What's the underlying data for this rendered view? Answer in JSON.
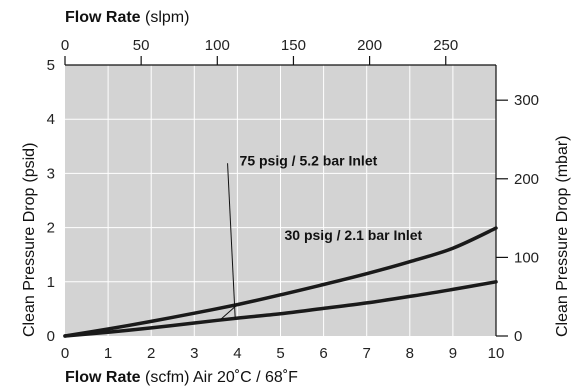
{
  "chart_data": {
    "type": "line",
    "x_bottom": {
      "title_bold": "Flow Rate",
      "title_rest": " (scfm) Air 20˚C / 68˚F",
      "range": [
        0,
        10
      ],
      "ticks": [
        "0",
        "1",
        "2",
        "3",
        "4",
        "5",
        "6",
        "7",
        "8",
        "9",
        "10"
      ]
    },
    "x_top": {
      "title_bold": "Flow Rate",
      "title_rest": " (slpm)",
      "range_max_slpm": 283,
      "ticks": [
        "0",
        "50",
        "100",
        "150",
        "200",
        "250"
      ],
      "tick_values": [
        0,
        50,
        100,
        150,
        200,
        250
      ]
    },
    "y_left": {
      "title": "Clean Pressure Drop",
      "title_unit": "(psid)",
      "range": [
        0,
        5
      ],
      "ticks": [
        "0",
        "1",
        "2",
        "3",
        "4",
        "5"
      ]
    },
    "y_right": {
      "title": "Clean Pressure Drop",
      "title_unit": "(mbar)",
      "ticks": [
        "0",
        "100",
        "200",
        "300"
      ],
      "tick_values": [
        0,
        100,
        200,
        300
      ],
      "mbar_per_psid": 68.95
    },
    "grid": true,
    "series": [
      {
        "name": "75 psig / 5.2 bar Inlet",
        "x": [
          0,
          1,
          2,
          3,
          4,
          5,
          6,
          7,
          8,
          9,
          10
        ],
        "y": [
          0,
          0.07,
          0.15,
          0.24,
          0.33,
          0.41,
          0.51,
          0.61,
          0.73,
          0.86,
          1.0
        ]
      },
      {
        "name": "30 psig / 2.1 bar Inlet",
        "x": [
          0,
          1,
          2,
          3,
          4,
          5,
          6,
          7,
          8,
          9,
          10
        ],
        "y": [
          0,
          0.13,
          0.27,
          0.42,
          0.58,
          0.76,
          0.95,
          1.15,
          1.37,
          1.62,
          1.99
        ]
      }
    ],
    "annotations": [
      {
        "series": "75 psig / 5.2 bar Inlet",
        "label": "75 psig / 5.2 bar Inlet",
        "x": 3.95,
        "y": 0.31,
        "label_x": 4.05,
        "label_y": 3.15
      },
      {
        "series": "30 psig / 2.1 bar Inlet",
        "label": "30 psig / 2.1 bar Inlet",
        "x": 4.0,
        "y": 0.58,
        "label_x": 5.0,
        "label_y": 1.77
      }
    ]
  }
}
